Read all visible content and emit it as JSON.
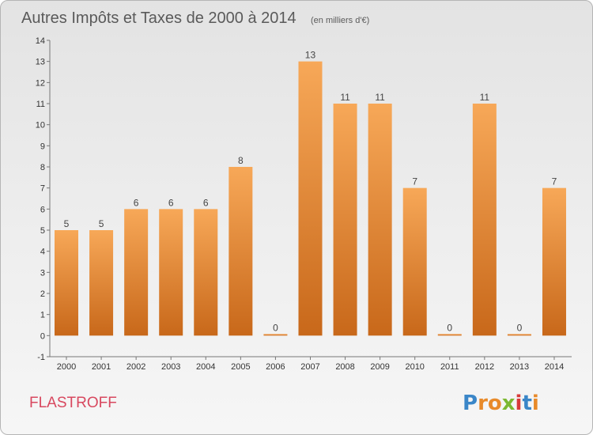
{
  "chart_data": {
    "type": "bar",
    "title": "Autres Impôts et Taxes de 2000 à 2014",
    "subtitle": "(en milliers d'€)",
    "categories": [
      "2000",
      "2001",
      "2002",
      "2003",
      "2004",
      "2005",
      "2006",
      "2007",
      "2008",
      "2009",
      "2010",
      "2011",
      "2012",
      "2013",
      "2014"
    ],
    "values": [
      5,
      5,
      6,
      6,
      6,
      8,
      0,
      13,
      11,
      11,
      7,
      0,
      11,
      0,
      7
    ],
    "data_labels": [
      "5",
      "5",
      "6",
      "6",
      "6",
      "8",
      "0",
      "13",
      "11",
      "11",
      "7",
      "0",
      "11",
      "0",
      "7"
    ],
    "y_ticks": [
      "-1",
      "0",
      "1",
      "2",
      "3",
      "4",
      "5",
      "6",
      "7",
      "8",
      "9",
      "10",
      "11",
      "12",
      "13",
      "14"
    ],
    "ylim": [
      -1,
      14
    ],
    "grid": false,
    "bar_color_top": "#f7a858",
    "bar_color_bottom": "#c8681a",
    "xlabel": "",
    "ylabel": ""
  },
  "footer": {
    "town": "FLASTROFF",
    "town_color": "#d8485f",
    "logo_letters": [
      "P",
      "r",
      "o",
      "x",
      "i",
      "t",
      "i"
    ],
    "logo_colors": [
      "#3a86c8",
      "#e88a2a",
      "#e88a2a",
      "#7cb832",
      "#d83a3a",
      "#3a86c8",
      "#e88a2a"
    ]
  }
}
